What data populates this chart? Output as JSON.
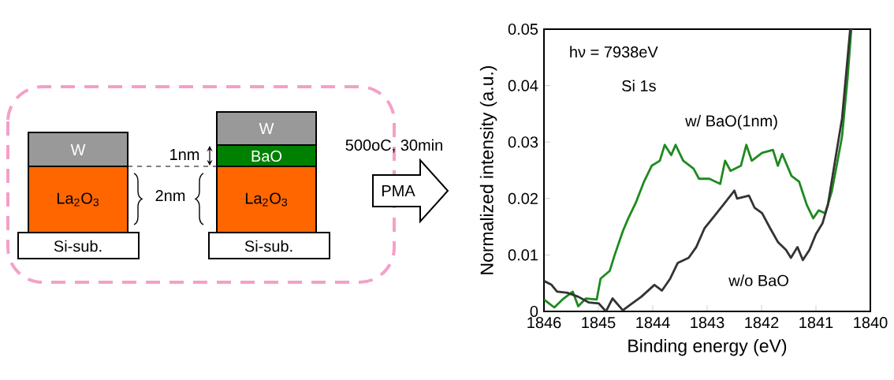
{
  "chart_data": [
    {
      "type": "other",
      "annotations": [
        "W",
        "La$_{2}$O$_{3}$",
        "Si-sub.",
        "W",
        "BaO",
        "La$_{2}$O$_{3}$",
        "Si-sub.",
        "1nm",
        "2nm",
        "500oC, 30min",
        "PMA"
      ]
    },
    {
      "type": "line",
      "xlabel": "Binding energy (eV)",
      "ylabel": "Normalized intensity (a.u.)",
      "xlim": [
        1846,
        1840
      ],
      "ylim": [
        0,
        0.05
      ],
      "xticks": [
        1846,
        1845,
        1844,
        1843,
        1842,
        1841,
        1840
      ],
      "yticks": [
        0,
        0.01,
        0.02,
        0.03,
        0.04,
        0.05
      ],
      "annotations": [
        "hν = 7938eV",
        "Si 1s"
      ],
      "series": [
        {
          "name": "w/ BaO(1nm)",
          "color": "#1f8a1f",
          "x": [
            1846,
            1845.81,
            1845.66,
            1845.47,
            1845.37,
            1845.23,
            1845.03,
            1844.96,
            1844.79,
            1844.7,
            1844.55,
            1844.45,
            1844.31,
            1844.16,
            1844.02,
            1843.87,
            1843.78,
            1843.66,
            1843.58,
            1843.44,
            1843.25,
            1843.15,
            1842.96,
            1842.76,
            1842.67,
            1842.57,
            1842.38,
            1842.28,
            1842.18,
            1841.99,
            1841.79,
            1841.7,
            1841.62,
            1841.45,
            1841.31,
            1841.17,
            1841.05,
            1840.95,
            1840.83,
            1840.71,
            1840.61,
            1840.52,
            1840.42,
            1840.35
          ],
          "values": [
            0.0021,
            0.0007,
            0.0021,
            0.0035,
            0.0009,
            0.0023,
            0.0021,
            0.0058,
            0.0072,
            0.01,
            0.0142,
            0.0165,
            0.0193,
            0.023,
            0.0258,
            0.0267,
            0.0295,
            0.0277,
            0.0295,
            0.0267,
            0.0253,
            0.0235,
            0.0235,
            0.0226,
            0.0267,
            0.0249,
            0.0258,
            0.0295,
            0.0267,
            0.0281,
            0.0286,
            0.0258,
            0.0279,
            0.024,
            0.023,
            0.0189,
            0.0165,
            0.0179,
            0.0174,
            0.0212,
            0.0263,
            0.031,
            0.0412,
            0.05
          ]
        },
        {
          "name": "w/o BaO",
          "color": "#333333",
          "x": [
            1846,
            1845.86,
            1845.76,
            1845.57,
            1845.37,
            1845.18,
            1844.99,
            1844.86,
            1844.74,
            1844.55,
            1844.41,
            1844.21,
            1843.97,
            1843.83,
            1843.68,
            1843.54,
            1843.34,
            1843.2,
            1843.05,
            1842.86,
            1842.67,
            1842.5,
            1842.45,
            1842.23,
            1842.13,
            1841.99,
            1841.84,
            1841.7,
            1841.55,
            1841.46,
            1841.34,
            1841.24,
            1841.12,
            1841.0,
            1840.88,
            1840.78,
            1840.64,
            1840.52,
            1840.37
          ],
          "values": [
            0.0054,
            0.0047,
            0.0035,
            0.0033,
            0.0026,
            0.0016,
            0.0014,
            0.0,
            0.0023,
            0.0002,
            0.0012,
            0.0026,
            0.0047,
            0.0037,
            0.0058,
            0.0086,
            0.0095,
            0.0114,
            0.0147,
            0.017,
            0.0193,
            0.0214,
            0.02,
            0.0205,
            0.0184,
            0.0174,
            0.0147,
            0.0123,
            0.0109,
            0.0095,
            0.0114,
            0.0091,
            0.0109,
            0.0137,
            0.0156,
            0.0189,
            0.0272,
            0.0342,
            0.05
          ]
        }
      ]
    }
  ]
}
